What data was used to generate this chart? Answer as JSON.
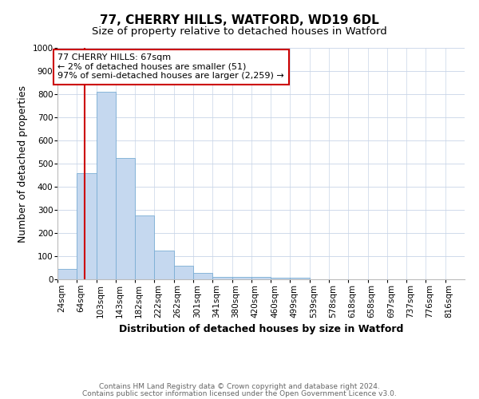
{
  "title": "77, CHERRY HILLS, WATFORD, WD19 6DL",
  "subtitle": "Size of property relative to detached houses in Watford",
  "xlabel": "Distribution of detached houses by size in Watford",
  "ylabel": "Number of detached properties",
  "bin_labels": [
    "24sqm",
    "64sqm",
    "103sqm",
    "143sqm",
    "182sqm",
    "222sqm",
    "262sqm",
    "301sqm",
    "341sqm",
    "380sqm",
    "420sqm",
    "460sqm",
    "499sqm",
    "539sqm",
    "578sqm",
    "618sqm",
    "658sqm",
    "697sqm",
    "737sqm",
    "776sqm",
    "816sqm"
  ],
  "bar_values": [
    46,
    460,
    810,
    525,
    275,
    125,
    57,
    27,
    12,
    12,
    12,
    8,
    8,
    0,
    0,
    0,
    0,
    0,
    0,
    0,
    0
  ],
  "bar_color": "#c5d8ef",
  "bar_edge_color": "#7aadd4",
  "red_line_x": 1.42,
  "annotation_text": "77 CHERRY HILLS: 67sqm\n← 2% of detached houses are smaller (51)\n97% of semi-detached houses are larger (2,259) →",
  "annotation_box_color": "#ffffff",
  "annotation_box_edge": "#cc0000",
  "red_line_color": "#cc0000",
  "ylim": [
    0,
    1000
  ],
  "yticks": [
    0,
    100,
    200,
    300,
    400,
    500,
    600,
    700,
    800,
    900,
    1000
  ],
  "footer1": "Contains HM Land Registry data © Crown copyright and database right 2024.",
  "footer2": "Contains public sector information licensed under the Open Government Licence v3.0.",
  "title_fontsize": 11,
  "subtitle_fontsize": 9.5,
  "axis_label_fontsize": 9,
  "tick_fontsize": 7.5,
  "annotation_fontsize": 8,
  "footer_fontsize": 6.5,
  "background_color": "#ffffff",
  "grid_color": "#c8d4e8"
}
